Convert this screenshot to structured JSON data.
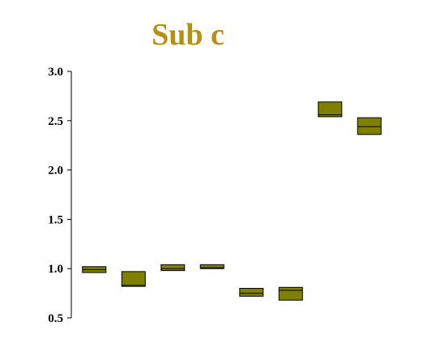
{
  "chart_data": {
    "type": "box",
    "title": "Sub c",
    "xlabel": "",
    "ylabel": "",
    "ylim": [
      0.5,
      3.0
    ],
    "yticks": [
      "0.5",
      "1.0",
      "1.5",
      "2.0",
      "2.5",
      "3.0"
    ],
    "grid": false,
    "legend": "none",
    "boxes": [
      {
        "low": 0.96,
        "median": 0.99,
        "high": 1.02
      },
      {
        "low": 0.82,
        "median": 0.83,
        "high": 0.97
      },
      {
        "low": 0.98,
        "median": 1.0,
        "high": 1.04
      },
      {
        "low": 1.0,
        "median": 1.01,
        "high": 1.04
      },
      {
        "low": 0.72,
        "median": 0.75,
        "high": 0.8
      },
      {
        "low": 0.68,
        "median": 0.78,
        "high": 0.81
      },
      {
        "low": 2.54,
        "median": 2.56,
        "high": 2.69
      },
      {
        "low": 2.36,
        "median": 2.44,
        "high": 2.53
      }
    ],
    "colors": {
      "title": "#b8900f",
      "box_fill": "#808000",
      "box_stroke": "#000000",
      "axis": "#000000"
    }
  }
}
